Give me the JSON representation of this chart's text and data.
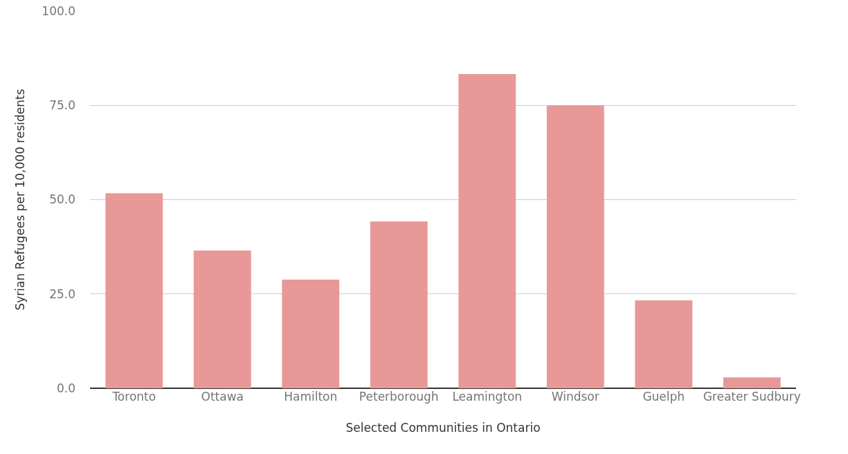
{
  "chart_data": {
    "type": "bar",
    "xlabel": "Selected Communities in Ontario",
    "ylabel": "Syrian Refugees per 10,000 residents",
    "categories": [
      "Toronto",
      "Ottawa",
      "Hamilton",
      "Peterborough",
      "Leamington",
      "Windsor",
      "Guelph",
      "Greater Sudbury"
    ],
    "values": [
      51.7,
      36.5,
      28.8,
      44.2,
      83.3,
      75.0,
      23.3,
      2.9
    ],
    "color": "#e99898",
    "ylim": [
      0,
      100
    ],
    "yticks": [
      {
        "value": 0,
        "label": "0.0"
      },
      {
        "value": 25,
        "label": "25.0"
      },
      {
        "value": 50,
        "label": "50.0"
      },
      {
        "value": 75,
        "label": "75.0"
      },
      {
        "value": 100,
        "label": "100.0"
      }
    ],
    "grid": "y"
  }
}
